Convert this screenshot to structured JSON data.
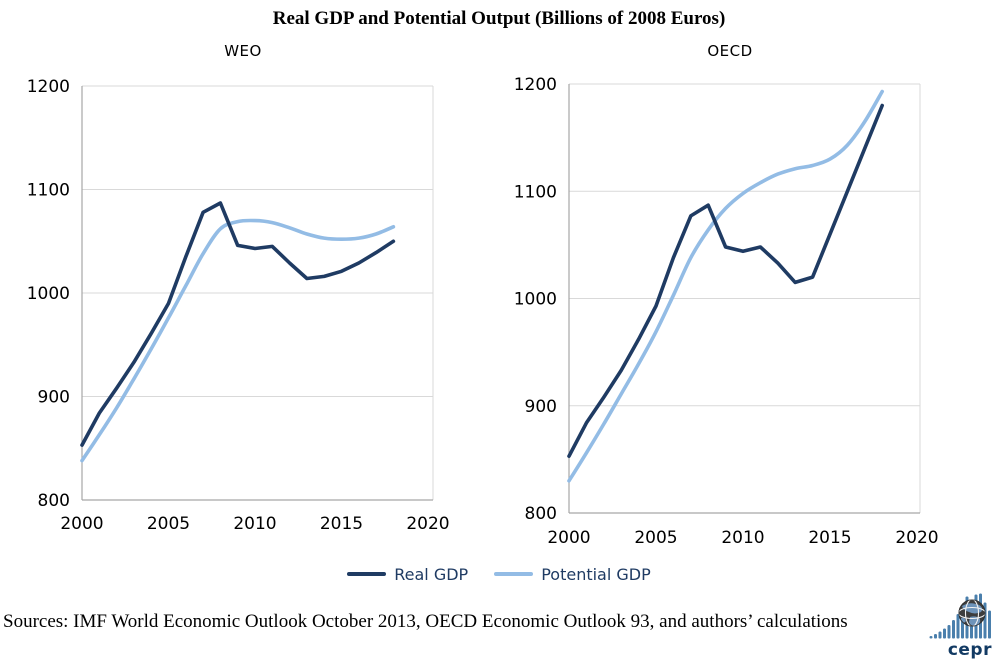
{
  "title": "Real GDP and Potential Output (Billions of 2008 Euros)",
  "legend": [
    {
      "label": "Real GDP",
      "color": "#1F3B63"
    },
    {
      "label": "Potential GDP",
      "color": "#93BCE5"
    }
  ],
  "footer": {
    "sources": "Sources: IMF World Economic Outlook October 2013, OECD Economic Outlook 93, and authors’ calculations",
    "logo_text": "cepr"
  },
  "colors": {
    "real_gdp": "#1F3B63",
    "potential_gdp": "#93BCE5",
    "gridline": "#D9D9D9",
    "axis": "#A6A6A6",
    "tick_text": "#000000",
    "legend_text": "#1F3B63",
    "logo_bars": "#4A7FAC",
    "logo_globe": "#3D3D3D",
    "logo_land": "#6E94BA",
    "logo_text": "#123A63"
  },
  "chart_data": [
    {
      "type": "line",
      "title": "WEO",
      "xlabel": "",
      "ylabel": "",
      "xlim": [
        2000,
        2020
      ],
      "ylim": [
        800,
        1200
      ],
      "xticks": [
        2000,
        2005,
        2010,
        2015,
        2020
      ],
      "yticks": [
        800,
        900,
        1000,
        1100,
        1200
      ],
      "grid": true,
      "legend_position": "bottom",
      "x": [
        2000,
        2001,
        2002,
        2003,
        2004,
        2005,
        2006,
        2007,
        2008,
        2009,
        2010,
        2011,
        2012,
        2013,
        2014,
        2015,
        2016,
        2017,
        2018
      ],
      "series": [
        {
          "name": "Real GDP",
          "color": "#1F3B63",
          "smooth": false,
          "values": [
            853,
            884,
            908,
            933,
            961,
            990,
            1035,
            1078,
            1087,
            1046,
            1043,
            1045,
            1029,
            1014,
            1016,
            1021,
            1029,
            1039,
            1050
          ]
        },
        {
          "name": "Potential GDP",
          "color": "#93BCE5",
          "smooth": true,
          "values": [
            838,
            863,
            889,
            917,
            946,
            976,
            1007,
            1038,
            1062,
            1069,
            1070,
            1068,
            1063,
            1057,
            1053,
            1052,
            1053,
            1057,
            1064
          ]
        }
      ]
    },
    {
      "type": "line",
      "title": "OECD",
      "xlabel": "",
      "ylabel": "",
      "xlim": [
        2000,
        2020
      ],
      "ylim": [
        800,
        1200
      ],
      "xticks": [
        2000,
        2005,
        2010,
        2015,
        2020
      ],
      "yticks": [
        800,
        900,
        1000,
        1100,
        1200
      ],
      "grid": true,
      "legend_position": "bottom",
      "x": [
        2000,
        2001,
        2002,
        2003,
        2004,
        2005,
        2006,
        2007,
        2008,
        2009,
        2010,
        2011,
        2012,
        2013,
        2014,
        2015,
        2016,
        2017,
        2018
      ],
      "series": [
        {
          "name": "Real GDP",
          "color": "#1F3B63",
          "smooth": false,
          "values": [
            853,
            884,
            908,
            933,
            962,
            993,
            1038,
            1077,
            1087,
            1048,
            1044,
            1048,
            1033,
            1015,
            1020,
            1060,
            1100,
            1140,
            1180
          ]
        },
        {
          "name": "Potential GDP",
          "color": "#93BCE5",
          "smooth": true,
          "values": [
            830,
            856,
            883,
            911,
            939,
            969,
            1003,
            1038,
            1064,
            1084,
            1098,
            1108,
            1116,
            1121,
            1124,
            1130,
            1143,
            1165,
            1193
          ]
        }
      ]
    }
  ]
}
